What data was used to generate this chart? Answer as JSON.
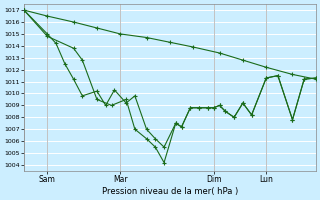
{
  "background_color": "#cceeff",
  "grid_color": "#ffffff",
  "line_color": "#1a6b1a",
  "ylabel_text": "Pression niveau de la mer( hPa )",
  "ylim": [
    1003.5,
    1017.5
  ],
  "yticks": [
    1004,
    1005,
    1006,
    1007,
    1008,
    1009,
    1010,
    1011,
    1012,
    1013,
    1014,
    1015,
    1016,
    1017
  ],
  "xtick_labels": [
    "Sam",
    "Mar",
    "Dim",
    "Lun"
  ],
  "xtick_positions": [
    8,
    33,
    65,
    83
  ],
  "xlim": [
    0,
    100
  ],
  "line1_x": [
    0,
    8,
    17,
    25,
    33,
    42,
    50,
    58,
    67,
    75,
    83,
    92,
    100
  ],
  "line1_y": [
    1017.0,
    1016.5,
    1016.0,
    1015.5,
    1015.0,
    1014.7,
    1014.3,
    1013.9,
    1013.4,
    1012.8,
    1012.2,
    1011.6,
    1011.2
  ],
  "line2_x": [
    0,
    8,
    11,
    14,
    17,
    20,
    25,
    28,
    31,
    35,
    38,
    42,
    45,
    48,
    52,
    54,
    57,
    60,
    63,
    65,
    67,
    69,
    72,
    75,
    78,
    83,
    87,
    92,
    96,
    100
  ],
  "line2_y": [
    1017.0,
    1015.0,
    1014.2,
    1012.5,
    1011.2,
    1009.8,
    1010.2,
    1009.0,
    1010.3,
    1009.2,
    1009.8,
    1007.0,
    1006.2,
    1005.5,
    1007.5,
    1007.2,
    1008.8,
    1008.8,
    1008.8,
    1008.8,
    1009.0,
    1008.5,
    1008.0,
    1009.2,
    1008.2,
    1011.3,
    1011.5,
    1007.8,
    1011.2,
    1011.3
  ],
  "line3_x": [
    0,
    8,
    17,
    20,
    25,
    30,
    35,
    38,
    42,
    45,
    48,
    52,
    54,
    57,
    60,
    63,
    65,
    67,
    69,
    72,
    75,
    78,
    83,
    87,
    92,
    96,
    100
  ],
  "line3_y": [
    1017.0,
    1014.8,
    1013.8,
    1012.8,
    1009.5,
    1009.0,
    1009.5,
    1007.0,
    1006.2,
    1005.5,
    1004.2,
    1007.5,
    1007.2,
    1008.8,
    1008.8,
    1008.8,
    1008.8,
    1009.0,
    1008.5,
    1008.0,
    1009.2,
    1008.2,
    1011.3,
    1011.5,
    1007.8,
    1011.2,
    1011.3
  ]
}
